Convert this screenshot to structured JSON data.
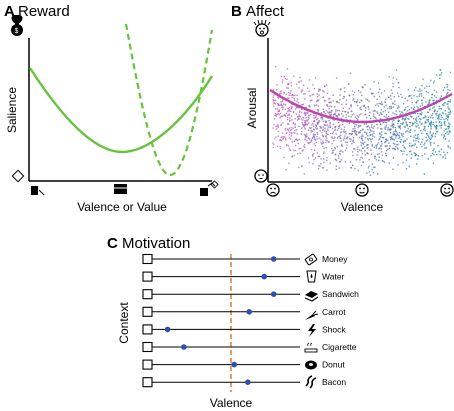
{
  "panels": {
    "reward": {
      "letter": "A",
      "title": "Reward",
      "xlabel": "Valence or Value",
      "ylabel": "Salience",
      "icons": [
        "money-bag-icon",
        "diamond-icon",
        "trash-icon",
        "treasure-chest-icon",
        "gift-icon"
      ]
    },
    "affect": {
      "letter": "B",
      "title": "Affect",
      "xlabel": "Valence",
      "ylabel": "Arousal",
      "icons": [
        "surprised-face-icon",
        "sleeping-face-icon",
        "sad-face-icon",
        "neutral-face-icon",
        "happy-face-icon"
      ]
    },
    "motivation": {
      "letter": "C",
      "title": "Motivation",
      "xlabel": "Valence",
      "ylabel": "Context",
      "items": [
        {
          "label": "Money",
          "icon": "money-icon",
          "value": 0.88
        },
        {
          "label": "Water",
          "icon": "water-icon",
          "value": 0.81
        },
        {
          "label": "Sandwich",
          "icon": "sandwich-icon",
          "value": 0.88
        },
        {
          "label": "Carrot",
          "icon": "carrot-icon",
          "value": 0.7
        },
        {
          "label": "Shock",
          "icon": "lightning-icon",
          "value": 0.1
        },
        {
          "label": "Cigarette",
          "icon": "cigarette-icon",
          "value": 0.22
        },
        {
          "label": "Donut",
          "icon": "donut-icon",
          "value": 0.59
        },
        {
          "label": "Bacon",
          "icon": "bacon-icon",
          "value": 0.69
        }
      ],
      "colors": {
        "marker": "#2f4fb0",
        "divider": "#e0641a"
      }
    }
  },
  "colors": {
    "curve": "#66c33a",
    "affect_curve": "#c040b0"
  }
}
